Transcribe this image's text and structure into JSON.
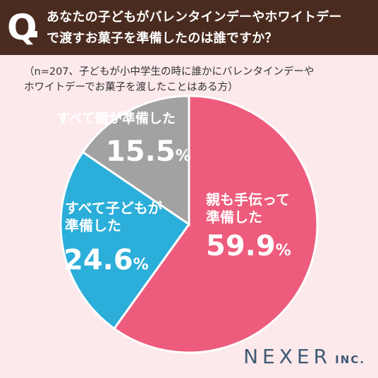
{
  "header": {
    "q_mark": "Q",
    "question_line1": "あなたの子どもがバレンタインデーやホワイトデー",
    "question_line2": "で渡すお菓子を準備したのは誰ですか？"
  },
  "note": {
    "line1": "（n=207、子どもが小中学生の時に誰かにバレンタインデーや",
    "line2": "ホワイトデーでお菓子を渡したことはある方）"
  },
  "chart_data": {
    "type": "pie",
    "title": "",
    "slices": [
      {
        "label_lines": [
          "親も手伝って",
          "準備した"
        ],
        "value": 59.9,
        "value_text": "59.9",
        "color": "#ed5c7c"
      },
      {
        "label_lines": [
          "すべて子どもが",
          "準備した"
        ],
        "value": 24.6,
        "value_text": "24.6",
        "color": "#2baed9"
      },
      {
        "label_lines": [
          "すべて親が準備した"
        ],
        "value": 15.5,
        "value_text": "15.5",
        "color": "#a2a2a2"
      }
    ],
    "unit": "%"
  },
  "logo": {
    "main": "NEXER",
    "sub": "INC."
  }
}
